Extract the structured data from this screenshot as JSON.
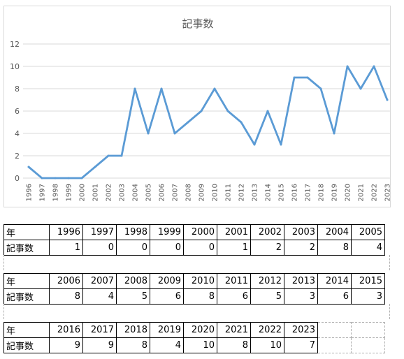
{
  "chart_data": {
    "type": "line",
    "title": "記事数",
    "xlabel": "",
    "ylabel": "",
    "ylim": [
      0,
      12
    ],
    "yticks": [
      0,
      2,
      4,
      6,
      8,
      10,
      12
    ],
    "grid": true,
    "legend": "none",
    "line_color": "#5b9bd5",
    "categories": [
      "1996",
      "1997",
      "1998",
      "1999",
      "2000",
      "2001",
      "2002",
      "2003",
      "2004",
      "2005",
      "2006",
      "2007",
      "2008",
      "2009",
      "2010",
      "2011",
      "2012",
      "2013",
      "2014",
      "2015",
      "2016",
      "2017",
      "2018",
      "2019",
      "2020",
      "2021",
      "2022",
      "2023"
    ],
    "values": [
      1,
      0,
      0,
      0,
      0,
      1,
      2,
      2,
      8,
      4,
      8,
      4,
      5,
      6,
      8,
      6,
      5,
      3,
      6,
      3,
      9,
      9,
      8,
      4,
      10,
      8,
      10,
      7
    ]
  },
  "table": {
    "row_label_year": "年",
    "row_label_count": "記事数",
    "blocks": [
      {
        "years": [
          "1996",
          "1997",
          "1998",
          "1999",
          "2000",
          "2001",
          "2002",
          "2003",
          "2004",
          "2005"
        ],
        "counts": [
          "1",
          "0",
          "0",
          "0",
          "0",
          "1",
          "2",
          "2",
          "8",
          "4"
        ]
      },
      {
        "years": [
          "2006",
          "2007",
          "2008",
          "2009",
          "2010",
          "2011",
          "2012",
          "2013",
          "2014",
          "2015"
        ],
        "counts": [
          "8",
          "4",
          "5",
          "6",
          "8",
          "6",
          "5",
          "3",
          "6",
          "3"
        ]
      },
      {
        "years": [
          "2016",
          "2017",
          "2018",
          "2019",
          "2020",
          "2021",
          "2022",
          "2023"
        ],
        "counts": [
          "9",
          "9",
          "8",
          "4",
          "10",
          "8",
          "10",
          "7"
        ]
      }
    ]
  }
}
